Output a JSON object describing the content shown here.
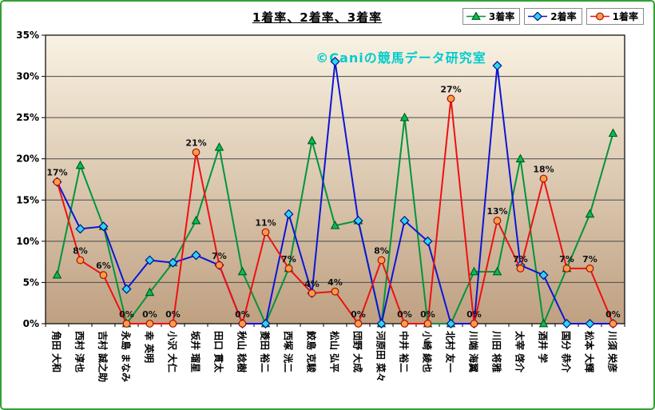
{
  "chart_data": {
    "type": "line",
    "title": "1着率、2着率、3着率",
    "watermark": "©Caniの競馬データ研究室",
    "categories": [
      "角田 大和",
      "西村 淳也",
      "吉村 誠之助",
      "永島 まなみ",
      "幸 英明",
      "小沢 大仁",
      "坂井 瑠星",
      "田口 貫太",
      "秋山 稔樹",
      "菱田 裕二",
      "西塚 洸二",
      "鮫島 克駿",
      "松山 弘平",
      "団野 大成",
      "河原田 菜々",
      "中井 裕二",
      "小崎 綾也",
      "北村 友一",
      "川端 海翼",
      "川田 将雅",
      "太宰 啓介",
      "酒井 学",
      "国分 恭介",
      "松本 大輝",
      "川須 栄彦"
    ],
    "series": [
      {
        "name": "3着率",
        "id": "third-place-rate",
        "marker": "triangle",
        "line_color": "#00953a",
        "marker_fill": "#00c050",
        "marker_stroke": "#005a20",
        "values": [
          5.9,
          19.2,
          11.8,
          0,
          3.8,
          7.4,
          12.5,
          21.4,
          6.3,
          0,
          6.7,
          22.2,
          11.9,
          12.5,
          0,
          25,
          0,
          0,
          6.3,
          6.3,
          20,
          0,
          6.7,
          13.3,
          23.1
        ]
      },
      {
        "name": "2着率",
        "id": "second-place-rate",
        "marker": "diamond",
        "line_color": "#0b16d6",
        "marker_fill": "#2fd4f0",
        "marker_stroke": "#001090",
        "values": [
          17.2,
          11.5,
          11.8,
          4.2,
          7.7,
          7.4,
          8.3,
          7.1,
          0,
          0,
          13.3,
          3.7,
          31.8,
          12.5,
          0,
          12.5,
          10,
          0,
          0,
          31.3,
          7.1,
          5.9,
          0,
          0,
          0
        ]
      },
      {
        "name": "1着率",
        "id": "first-place-rate",
        "marker": "circle",
        "line_color": "#ee1111",
        "marker_fill": "#ff9d45",
        "marker_stroke": "#a01010",
        "values": [
          17.2,
          7.7,
          5.9,
          0,
          0,
          0,
          20.8,
          7.1,
          0,
          11.1,
          6.7,
          3.7,
          3.9,
          0,
          7.7,
          0,
          0,
          27.3,
          0,
          12.5,
          6.7,
          17.6,
          6.7,
          6.7,
          0
        ],
        "data_labels": [
          "17%",
          "8%",
          "6%",
          "0%",
          "0%",
          "0%",
          "21%",
          "7%",
          "0%",
          "11%",
          "7%",
          "4%",
          "4%",
          "0%",
          "8%",
          "0%",
          "0%",
          "27%",
          "0%",
          "13%",
          "7%",
          "18%",
          "7%",
          "7%",
          "0%"
        ]
      }
    ],
    "y_axis": {
      "min": 0,
      "max": 35,
      "step": 5,
      "tick_labels": [
        "0%",
        "5%",
        "10%",
        "15%",
        "20%",
        "25%",
        "30%",
        "35%"
      ]
    },
    "x_axis": {
      "label_rotation": 90
    },
    "legend": {
      "position": "top-right"
    },
    "grid": true,
    "colors": {
      "frame_border": "#33a033",
      "plot_bg_top": "#f9f2e2",
      "plot_bg_bottom": "#bfa081",
      "gridline": "#4a4a4a",
      "axis": "#000000",
      "watermark": "#00cccc",
      "data_label": "#111111",
      "text": "#000000"
    }
  }
}
